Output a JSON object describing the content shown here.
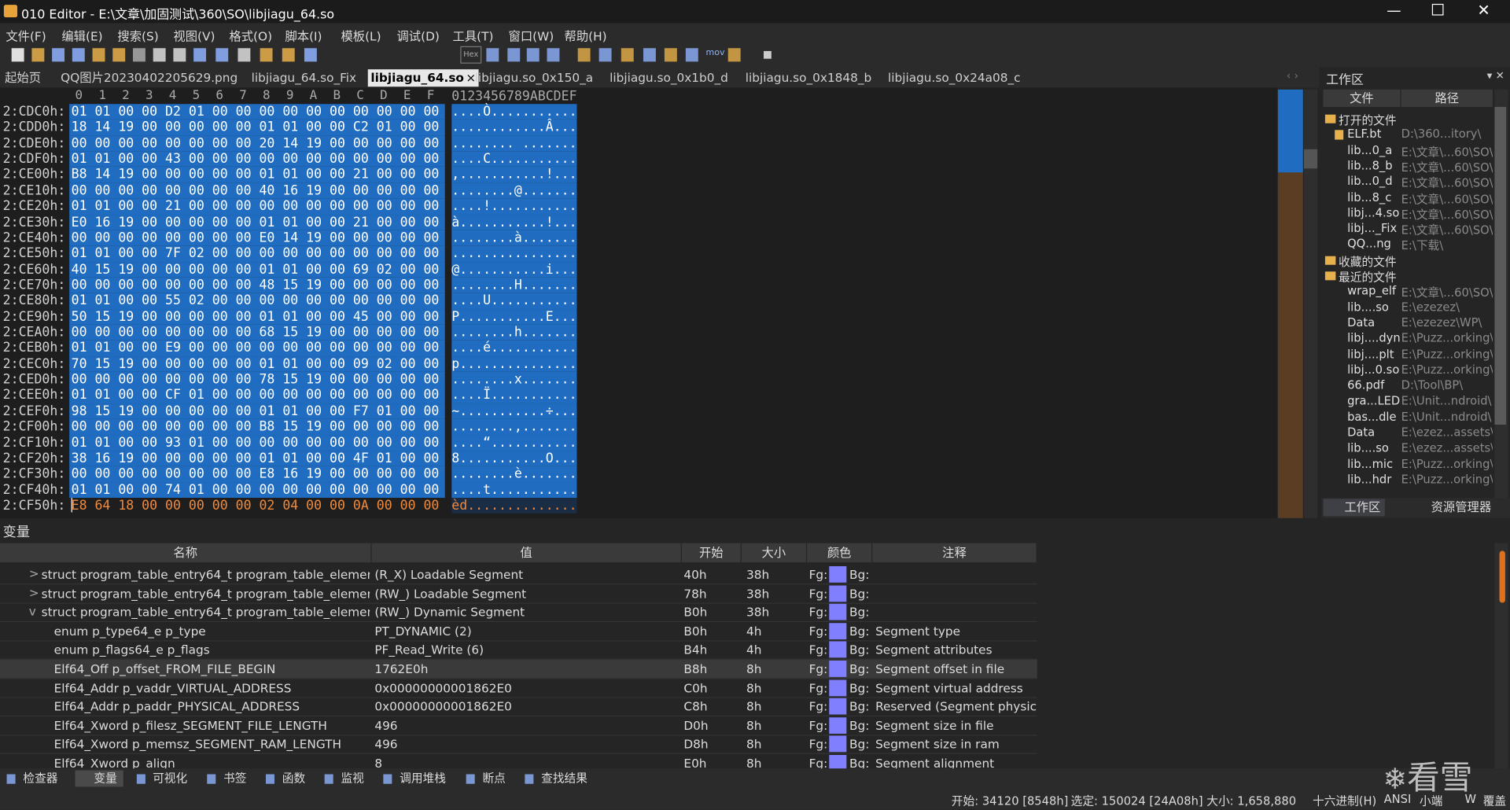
{
  "window": {
    "title": "010 Editor - E:\\文章\\加固测试\\360\\SO\\libjiagu_64.so"
  },
  "menu": [
    "文件(F)",
    "编辑(E)",
    "搜索(S)",
    "视图(V)",
    "格式(O)",
    "脚本(I)",
    "模板(L)",
    "调试(D)",
    "工具(T)",
    "窗口(W)",
    "帮助(H)"
  ],
  "toolbar": {
    "hex_label": "Hex",
    "mov_label": "mov"
  },
  "tabs": {
    "items": [
      "起始页",
      "QQ图片20230402205629.png",
      "libjiagu_64.so_Fix",
      "libjiagu_64.so",
      "libjiagu.so_0x150_a",
      "libjiagu.so_0x1b0_d",
      "libjiagu.so_0x1848_b",
      "libjiagu.so_0x24a08_c"
    ],
    "active": 3,
    "close": "×"
  },
  "hex": {
    "columns": [
      "0",
      "1",
      "2",
      "3",
      "4",
      "5",
      "6",
      "7",
      "8",
      "9",
      "A",
      "B",
      "C",
      "D",
      "E",
      "F"
    ],
    "ascii_header": "0123456789ABCDEF",
    "rows": [
      {
        "addr": "2:CDC0h:",
        "hex": "01 01 00 00 D2 01 00 00 00 00 00 00 00 00 00 00",
        "ascii": "....Ò..........."
      },
      {
        "addr": "2:CDD0h:",
        "hex": "18 14 19 00 00 00 00 00 01 01 00 00 C2 01 00 00",
        "ascii": "............Â..."
      },
      {
        "addr": "2:CDE0h:",
        "hex": "00 00 00 00 00 00 00 00 20 14 19 00 00 00 00 00",
        "ascii": "........ ......."
      },
      {
        "addr": "2:CDF0h:",
        "hex": "01 01 00 00 43 00 00 00 00 00 00 00 00 00 00 00",
        "ascii": "....C..........."
      },
      {
        "addr": "2:CE00h:",
        "hex": "B8 14 19 00 00 00 00 00 01 01 00 00 21 00 00 00",
        "ascii": ",...........!..."
      },
      {
        "addr": "2:CE10h:",
        "hex": "00 00 00 00 00 00 00 00 40 16 19 00 00 00 00 00",
        "ascii": "........@......."
      },
      {
        "addr": "2:CE20h:",
        "hex": "01 01 00 00 21 00 00 00 00 00 00 00 00 00 00 00",
        "ascii": "....!..........."
      },
      {
        "addr": "2:CE30h:",
        "hex": "E0 16 19 00 00 00 00 00 01 01 00 00 21 00 00 00",
        "ascii": "à...........!..."
      },
      {
        "addr": "2:CE40h:",
        "hex": "00 00 00 00 00 00 00 00 E0 14 19 00 00 00 00 00",
        "ascii": "........à......."
      },
      {
        "addr": "2:CE50h:",
        "hex": "01 01 00 00 7F 02 00 00 00 00 00 00 00 00 00 00",
        "ascii": "................"
      },
      {
        "addr": "2:CE60h:",
        "hex": "40 15 19 00 00 00 00 00 01 01 00 00 69 02 00 00",
        "ascii": "@...........i..."
      },
      {
        "addr": "2:CE70h:",
        "hex": "00 00 00 00 00 00 00 00 48 15 19 00 00 00 00 00",
        "ascii": "........H......."
      },
      {
        "addr": "2:CE80h:",
        "hex": "01 01 00 00 55 02 00 00 00 00 00 00 00 00 00 00",
        "ascii": "....U..........."
      },
      {
        "addr": "2:CE90h:",
        "hex": "50 15 19 00 00 00 00 00 01 01 00 00 45 00 00 00",
        "ascii": "P...........E..."
      },
      {
        "addr": "2:CEA0h:",
        "hex": "00 00 00 00 00 00 00 00 68 15 19 00 00 00 00 00",
        "ascii": "........h......."
      },
      {
        "addr": "2:CEB0h:",
        "hex": "01 01 00 00 E9 00 00 00 00 00 00 00 00 00 00 00",
        "ascii": "....é..........."
      },
      {
        "addr": "2:CEC0h:",
        "hex": "70 15 19 00 00 00 00 00 01 01 00 00 09 02 00 00",
        "ascii": "p..............."
      },
      {
        "addr": "2:CED0h:",
        "hex": "00 00 00 00 00 00 00 00 78 15 19 00 00 00 00 00",
        "ascii": "........x......."
      },
      {
        "addr": "2:CEE0h:",
        "hex": "01 01 00 00 CF 01 00 00 00 00 00 00 00 00 00 00",
        "ascii": "....Ï..........."
      },
      {
        "addr": "2:CEF0h:",
        "hex": "98 15 19 00 00 00 00 00 01 01 00 00 F7 01 00 00",
        "ascii": "~...........÷..."
      },
      {
        "addr": "2:CF00h:",
        "hex": "00 00 00 00 00 00 00 00 B8 15 19 00 00 00 00 00",
        "ascii": "........,......."
      },
      {
        "addr": "2:CF10h:",
        "hex": "01 01 00 00 93 01 00 00 00 00 00 00 00 00 00 00",
        "ascii": "....“..........."
      },
      {
        "addr": "2:CF20h:",
        "hex": "38 16 19 00 00 00 00 00 01 01 00 00 4F 01 00 00",
        "ascii": "8...........O..."
      },
      {
        "addr": "2:CF30h:",
        "hex": "00 00 00 00 00 00 00 00 E8 16 19 00 00 00 00 00",
        "ascii": "........è......."
      },
      {
        "addr": "2:CF40h:",
        "hex": "01 01 00 00 74 01 00 00 00 00 00 00 00 00 00 00",
        "ascii": "....t..........."
      },
      {
        "addr": "2:CF50h:",
        "hex": "E8 64 18 00 00 00 00 00 02 04 00 00 0A 00 00 00",
        "ascii": "èd.............."
      }
    ]
  },
  "workspace": {
    "title": "工作区",
    "col_file": "文件",
    "col_path": "路径",
    "groups": [
      {
        "label": "打开的文件",
        "items": [
          [
            "ELF.bt",
            "D:\\360...itory\\"
          ],
          [
            "lib...0_a",
            "E:\\文章\\...60\\SO\\"
          ],
          [
            "lib...8_b",
            "E:\\文章\\...60\\SO\\"
          ],
          [
            "lib...0_d",
            "E:\\文章\\...60\\SO\\"
          ],
          [
            "lib...8_c",
            "E:\\文章\\...60\\SO\\"
          ],
          [
            "libj...4.so",
            "E:\\文章\\...60\\SO\\"
          ],
          [
            "libj..._Fix",
            "E:\\文章\\...60\\SO\\"
          ],
          [
            "QQ...ng",
            "E:\\下载\\"
          ]
        ]
      },
      {
        "label": "收藏的文件",
        "items": []
      },
      {
        "label": "最近的文件",
        "items": [
          [
            "wrap_elf",
            "E:\\文章\\...60\\SO\\"
          ],
          [
            "lib....so",
            "E:\\ezezez\\"
          ],
          [
            "Data",
            "E:\\ezezez\\WP\\"
          ],
          [
            "libj....dyn",
            "E:\\Puzz...orking\\"
          ],
          [
            "libj....plt",
            "E:\\Puzz...orking\\"
          ],
          [
            "libj...0.so",
            "E:\\Puzz...orking\\"
          ],
          [
            "66.pdf",
            "D:\\Tool\\BP\\"
          ],
          [
            "gra...LED",
            "E:\\Unit...ndroid\\"
          ],
          [
            "bas...dle",
            "E:\\Unit...ndroid\\"
          ],
          [
            "Data",
            "E:\\ezez...assets\\"
          ],
          [
            "lib....so",
            "E:\\ezez...assets\\"
          ],
          [
            "lib...mic",
            "E:\\Puzz...orking\\"
          ],
          [
            "lib...hdr",
            "E:\\Puzz...orking\\"
          ]
        ]
      }
    ],
    "bottom_tabs": [
      "工作区",
      "资源管理器"
    ]
  },
  "variables": {
    "title": "变量",
    "headers": [
      "名称",
      "值",
      "开始",
      "大小",
      "颜色",
      "注释"
    ],
    "fg_label": "Fg:",
    "bg_label": "Bg:",
    "rows": [
      {
        "indent": 0,
        "toggle": ">",
        "name": "struct program_table_entry64_t program_table_elemen...",
        "value": "(R_X) Loadable Segment",
        "start": "40h",
        "size": "38h",
        "comment": ""
      },
      {
        "indent": 0,
        "toggle": ">",
        "name": "struct program_table_entry64_t program_table_elemen...",
        "value": "(RW_) Loadable Segment",
        "start": "78h",
        "size": "38h",
        "comment": ""
      },
      {
        "indent": 0,
        "toggle": "v",
        "name": "struct program_table_entry64_t program_table_elemen...",
        "value": "(RW_) Dynamic Segment",
        "start": "B0h",
        "size": "38h",
        "comment": ""
      },
      {
        "indent": 1,
        "toggle": "",
        "name": "enum p_type64_e p_type",
        "value": "PT_DYNAMIC (2)",
        "start": "B0h",
        "size": "4h",
        "comment": "Segment type"
      },
      {
        "indent": 1,
        "toggle": "",
        "name": "enum p_flags64_e p_flags",
        "value": "PF_Read_Write (6)",
        "start": "B4h",
        "size": "4h",
        "comment": "Segment attributes"
      },
      {
        "indent": 1,
        "toggle": "",
        "name": "Elf64_Off p_offset_FROM_FILE_BEGIN",
        "value": "1762E0h",
        "start": "B8h",
        "size": "8h",
        "comment": "Segment offset in file"
      },
      {
        "indent": 1,
        "toggle": "",
        "name": "Elf64_Addr p_vaddr_VIRTUAL_ADDRESS",
        "value": "0x00000000001862E0",
        "start": "C0h",
        "size": "8h",
        "comment": "Segment virtual address"
      },
      {
        "indent": 1,
        "toggle": "",
        "name": "Elf64_Addr p_paddr_PHYSICAL_ADDRESS",
        "value": "0x00000000001862E0",
        "start": "C8h",
        "size": "8h",
        "comment": "Reserved (Segment physic..."
      },
      {
        "indent": 1,
        "toggle": "",
        "name": "Elf64_Xword p_filesz_SEGMENT_FILE_LENGTH",
        "value": "496",
        "start": "D0h",
        "size": "8h",
        "comment": "Segment size in file"
      },
      {
        "indent": 1,
        "toggle": "",
        "name": "Elf64_Xword p_memsz_SEGMENT_RAM_LENGTH",
        "value": "496",
        "start": "D8h",
        "size": "8h",
        "comment": "Segment size in ram"
      },
      {
        "indent": 1,
        "toggle": "",
        "name": "Elf64_Xword p_align",
        "value": "8",
        "start": "E0h",
        "size": "8h",
        "comment": "Segment alignment"
      }
    ],
    "selected": 5
  },
  "bottom_tabs": {
    "items": [
      "检查器",
      "变量",
      "可视化",
      "书签",
      "函数",
      "监视",
      "调用堆栈",
      "断点",
      "查找结果"
    ],
    "active": 1
  },
  "status": {
    "start": "开始: 34120 [8548h]",
    "selection": "选定: 150024 [24A08h]",
    "size": "大小: 1,658,880",
    "mode": "十六进制(H)",
    "charset": "ANSI",
    "endian": "小端",
    "w": "W",
    "insert": "覆盖"
  },
  "watermark": "看雪"
}
